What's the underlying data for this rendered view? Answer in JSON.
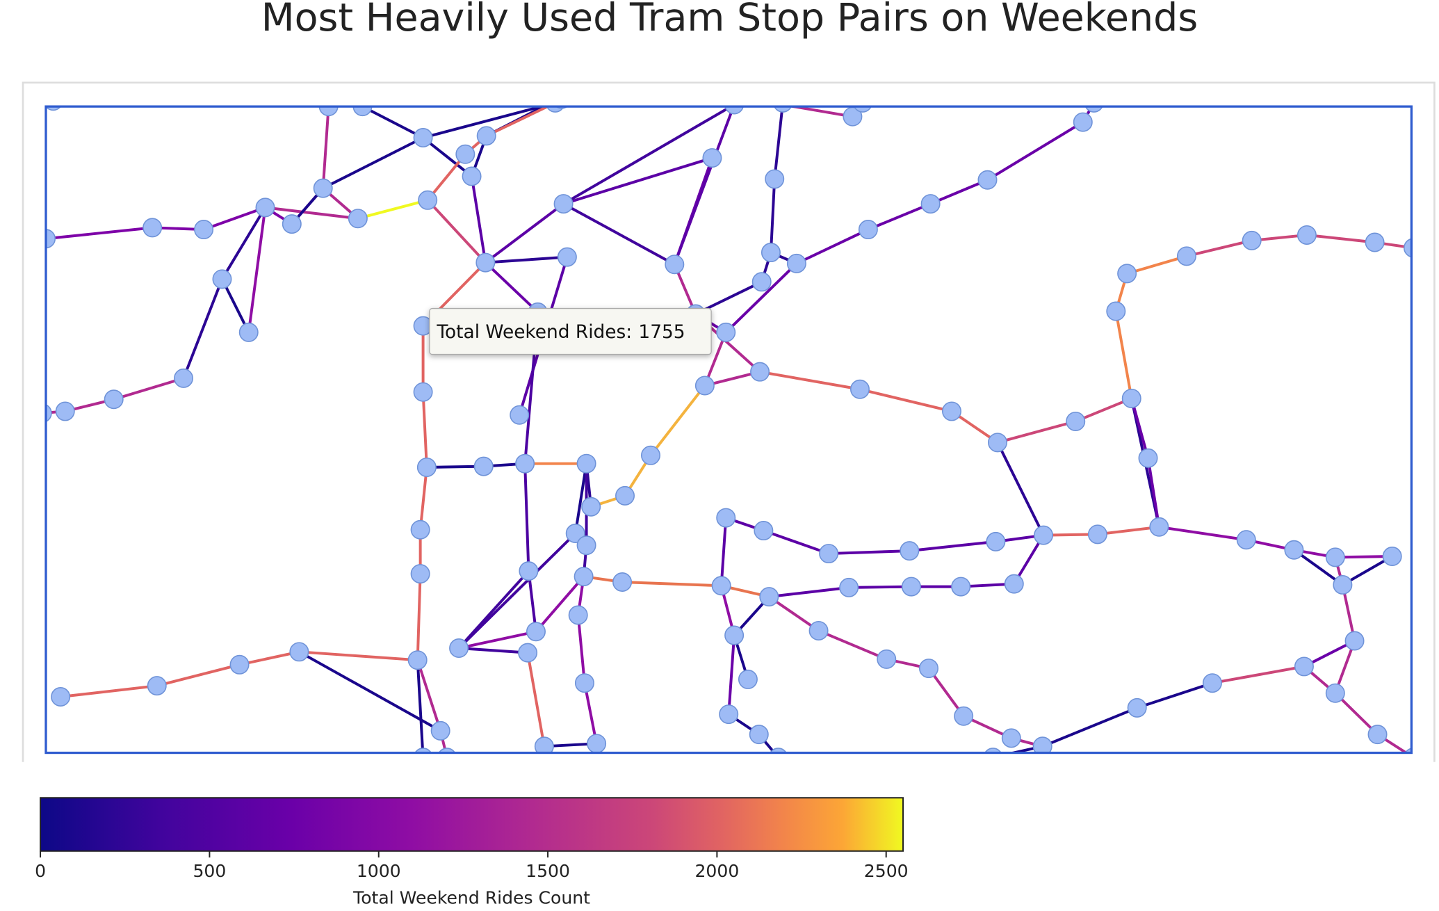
{
  "title": "Most Heavily Used Tram Stop Pairs on Weekends",
  "tooltip": {
    "label": "Total Weekend Rides:",
    "value": 1755
  },
  "colorbar": {
    "title": "Total Weekend Rides Count",
    "range": [
      0,
      2550
    ],
    "ticks": [
      0,
      500,
      1000,
      1500,
      2000,
      2500
    ]
  }
}
